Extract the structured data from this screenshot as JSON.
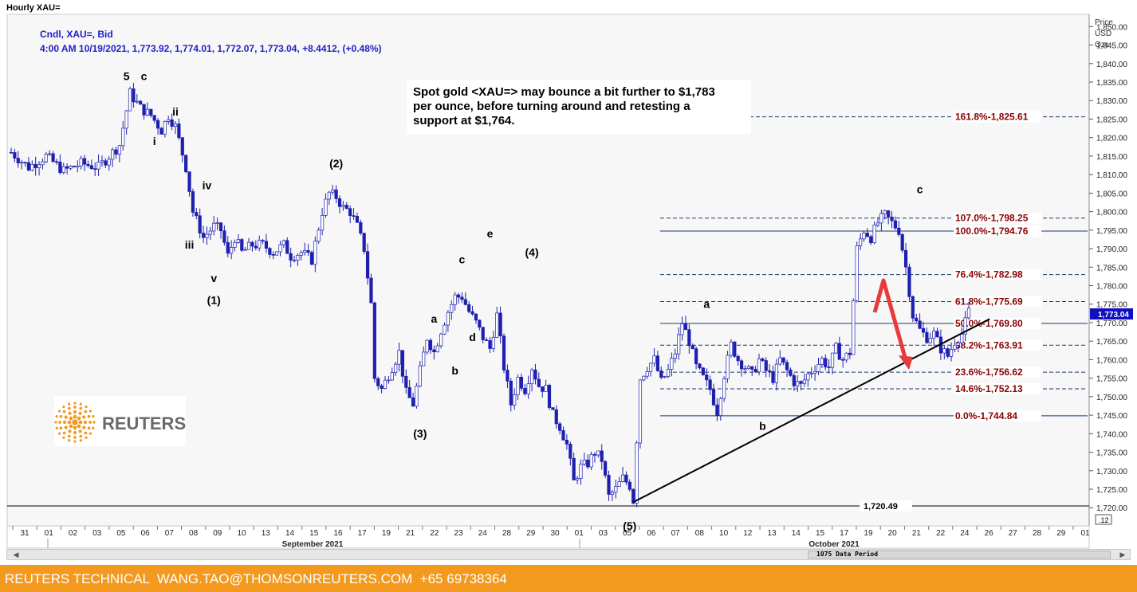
{
  "window": {
    "title": "Hourly XAU="
  },
  "legend": {
    "line1": "Cndl, XAU=, Bid",
    "line2": "4:00 AM 10/19/2021, 1,773.92, 1,774.01, 1,772.07, 1,773.04, +8.4412, (+0.48%)"
  },
  "note": {
    "lines": [
      "Spot gold <XAU=> may bounce a bit further to $1,783",
      "per ounce, before turning around and retesting a",
      "support at $1,764."
    ]
  },
  "axis_header": {
    "l1": "Price",
    "l2": "USD",
    "l3": "Ozs"
  },
  "price_tag": "1,773.04",
  "scale_box": ".12",
  "logo": {
    "text": "REUTERS"
  },
  "scrollbar": {
    "period_text": "1075 Data Period"
  },
  "footer": {
    "text": "REUTERS TECHNICAL  WANG.TAO@THOMSONREUTERS.COM  +65 69738364"
  },
  "colors": {
    "candle": "#1f1fb0",
    "legend_text": "#1e1ec8",
    "fib_text": "#8b0000",
    "fib_line": "#1a3a70",
    "arrow": "#e8393c",
    "footer_bg": "#f39a1e",
    "price_tag_bg": "#1010c0"
  },
  "chart_data": {
    "type": "candlestick",
    "title": "Hourly XAU=",
    "ylabel": "Price USD Ozs",
    "ylim": [
      1715,
      1852
    ],
    "y_ticks": [
      "1,720.00",
      "1,725.00",
      "1,730.00",
      "1,735.00",
      "1,740.00",
      "1,745.00",
      "1,750.00",
      "1,755.00",
      "1,760.00",
      "1,765.00",
      "1,770.00",
      "1,775.00",
      "1,780.00",
      "1,785.00",
      "1,790.00",
      "1,795.00",
      "1,800.00",
      "1,805.00",
      "1,810.00",
      "1,815.00",
      "1,820.00",
      "1,825.00",
      "1,830.00",
      "1,835.00",
      "1,840.00",
      "1,845.00",
      "1,850.00"
    ],
    "x_ticks": [
      "31",
      "01",
      "02",
      "03",
      "05",
      "06",
      "07",
      "08",
      "09",
      "10",
      "13",
      "14",
      "15",
      "16",
      "17",
      "19",
      "21",
      "22",
      "23",
      "24",
      "28",
      "29",
      "30",
      "01",
      "03",
      "05",
      "06",
      "07",
      "08",
      "10",
      "12",
      "13",
      "14",
      "15",
      "17",
      "19",
      "20",
      "21",
      "22",
      "24",
      "26",
      "27",
      "28",
      "29",
      "01"
    ],
    "x_months": [
      "September 2021",
      "October 2021"
    ],
    "price_path": [
      [
        0,
        1816
      ],
      [
        5,
        1812
      ],
      [
        10,
        1815
      ],
      [
        15,
        1811
      ],
      [
        20,
        1813
      ],
      [
        25,
        1812
      ],
      [
        31,
        1818
      ],
      [
        34,
        1832
      ],
      [
        37,
        1828
      ],
      [
        40,
        1826
      ],
      [
        43,
        1822
      ],
      [
        45,
        1826
      ],
      [
        47,
        1823
      ],
      [
        50,
        1812
      ],
      [
        52,
        1800
      ],
      [
        55,
        1793
      ],
      [
        58,
        1796
      ],
      [
        60,
        1795
      ],
      [
        62,
        1788
      ],
      [
        64,
        1793
      ],
      [
        66,
        1789
      ],
      [
        69,
        1791
      ],
      [
        72,
        1791
      ],
      [
        75,
        1789
      ],
      [
        78,
        1791
      ],
      [
        80,
        1788
      ],
      [
        83,
        1789
      ],
      [
        86,
        1787
      ],
      [
        89,
        1800
      ],
      [
        91,
        1805
      ],
      [
        93,
        1804
      ],
      [
        95,
        1801
      ],
      [
        97,
        1800
      ],
      [
        99,
        1796
      ],
      [
        101,
        1790
      ],
      [
        103,
        1775
      ],
      [
        104,
        1755
      ],
      [
        106,
        1752
      ],
      [
        109,
        1758
      ],
      [
        111,
        1762
      ],
      [
        113,
        1751
      ],
      [
        115,
        1748
      ],
      [
        117,
        1757
      ],
      [
        119,
        1766
      ],
      [
        121,
        1762
      ],
      [
        123,
        1768
      ],
      [
        125,
        1773
      ],
      [
        127,
        1777
      ],
      [
        129,
        1777
      ],
      [
        131,
        1773
      ],
      [
        133,
        1770
      ],
      [
        135,
        1766
      ],
      [
        137,
        1763
      ],
      [
        139,
        1772
      ],
      [
        141,
        1758
      ],
      [
        143,
        1748
      ],
      [
        145,
        1755
      ],
      [
        147,
        1752
      ],
      [
        149,
        1758
      ],
      [
        151,
        1753
      ],
      [
        153,
        1752
      ],
      [
        155,
        1745
      ],
      [
        157,
        1742
      ],
      [
        159,
        1737
      ],
      [
        161,
        1727
      ],
      [
        163,
        1731
      ],
      [
        165,
        1732
      ],
      [
        167,
        1735
      ],
      [
        169,
        1733
      ],
      [
        171,
        1723
      ],
      [
        173,
        1725
      ],
      [
        175,
        1728
      ],
      [
        177,
        1726
      ],
      [
        178,
        1722
      ],
      [
        180,
        1755
      ],
      [
        182,
        1758
      ],
      [
        184,
        1760
      ],
      [
        186,
        1754
      ],
      [
        188,
        1757
      ],
      [
        190,
        1762
      ],
      [
        192,
        1770
      ],
      [
        194,
        1765
      ],
      [
        196,
        1758
      ],
      [
        198,
        1755
      ],
      [
        200,
        1752
      ],
      [
        202,
        1746
      ],
      [
        204,
        1756
      ],
      [
        206,
        1764
      ],
      [
        208,
        1760
      ],
      [
        210,
        1758
      ],
      [
        212,
        1756
      ],
      [
        214,
        1760
      ],
      [
        216,
        1757
      ],
      [
        218,
        1755
      ],
      [
        220,
        1760
      ],
      [
        222,
        1757
      ],
      [
        224,
        1754
      ],
      [
        226,
        1753
      ],
      [
        228,
        1756
      ],
      [
        230,
        1758
      ],
      [
        232,
        1760
      ],
      [
        234,
        1758
      ],
      [
        236,
        1763
      ],
      [
        238,
        1760
      ],
      [
        240,
        1762
      ],
      [
        242,
        1790
      ],
      [
        244,
        1795
      ],
      [
        246,
        1793
      ],
      [
        248,
        1797
      ],
      [
        250,
        1799
      ],
      [
        252,
        1797
      ],
      [
        254,
        1795
      ],
      [
        256,
        1785
      ],
      [
        258,
        1772
      ],
      [
        260,
        1768
      ],
      [
        262,
        1766
      ],
      [
        264,
        1767
      ],
      [
        266,
        1763
      ],
      [
        268,
        1761
      ],
      [
        270,
        1765
      ],
      [
        272,
        1767
      ],
      [
        274,
        1773
      ]
    ],
    "events": {
      "wave_top_5": "5",
      "wave_labels": [
        "5",
        "c",
        "i",
        "ii",
        "iii",
        "iv",
        "v",
        "(1)",
        "(2)",
        "(3)",
        "(4)",
        "(5)",
        "a",
        "b",
        "c",
        "d",
        "e",
        "a",
        "b",
        "c"
      ]
    },
    "fib_levels": [
      {
        "pct": "161.8%",
        "price": "1,825.61",
        "value": 1825.61
      },
      {
        "pct": "107.0%",
        "price": "1,798.25",
        "value": 1798.25
      },
      {
        "pct": "100.0%",
        "price": "1,794.76",
        "value": 1794.76
      },
      {
        "pct": "76.4%",
        "price": "1,782.98",
        "value": 1782.98
      },
      {
        "pct": "61.8%",
        "price": "1,775.69",
        "value": 1775.69
      },
      {
        "pct": "50.0%",
        "price": "1,769.80",
        "value": 1769.8
      },
      {
        "pct": "38.2%",
        "price": "1,763.91",
        "value": 1763.91
      },
      {
        "pct": "23.6%",
        "price": "1,756.62",
        "value": 1756.62
      },
      {
        "pct": "14.6%",
        "price": "1,752.13",
        "value": 1752.13
      },
      {
        "pct": "0.0%",
        "price": "1,744.84",
        "value": 1744.84
      }
    ],
    "support_line": {
      "label": "1,720.49",
      "value": 1720.49
    },
    "trendline": {
      "from": [
        178,
        1721.5
      ],
      "to": [
        280,
        1771
      ]
    },
    "wave_annotations": [
      {
        "text": "5",
        "x": 33,
        "y": 1835.5
      },
      {
        "text": "c",
        "x": 38,
        "y": 1835.5
      },
      {
        "text": "i",
        "x": 41,
        "y": 1818
      },
      {
        "text": "ii",
        "x": 47,
        "y": 1826
      },
      {
        "text": "iv",
        "x": 56,
        "y": 1806
      },
      {
        "text": "iii",
        "x": 51,
        "y": 1790
      },
      {
        "text": "v",
        "x": 58,
        "y": 1781
      },
      {
        "text": "(1)",
        "x": 58,
        "y": 1775
      },
      {
        "text": "(2)",
        "x": 93,
        "y": 1812
      },
      {
        "text": "a",
        "x": 121,
        "y": 1770
      },
      {
        "text": "b",
        "x": 127,
        "y": 1756
      },
      {
        "text": "c",
        "x": 129,
        "y": 1786
      },
      {
        "text": "d",
        "x": 132,
        "y": 1765
      },
      {
        "text": "e",
        "x": 137,
        "y": 1793
      },
      {
        "text": "(4)",
        "x": 149,
        "y": 1788
      },
      {
        "text": "(3)",
        "x": 117,
        "y": 1739
      },
      {
        "text": "(5)",
        "x": 177,
        "y": 1714
      },
      {
        "text": "a",
        "x": 199,
        "y": 1774
      },
      {
        "text": "b",
        "x": 215,
        "y": 1741
      },
      {
        "text": "c",
        "x": 260,
        "y": 1805
      }
    ]
  }
}
